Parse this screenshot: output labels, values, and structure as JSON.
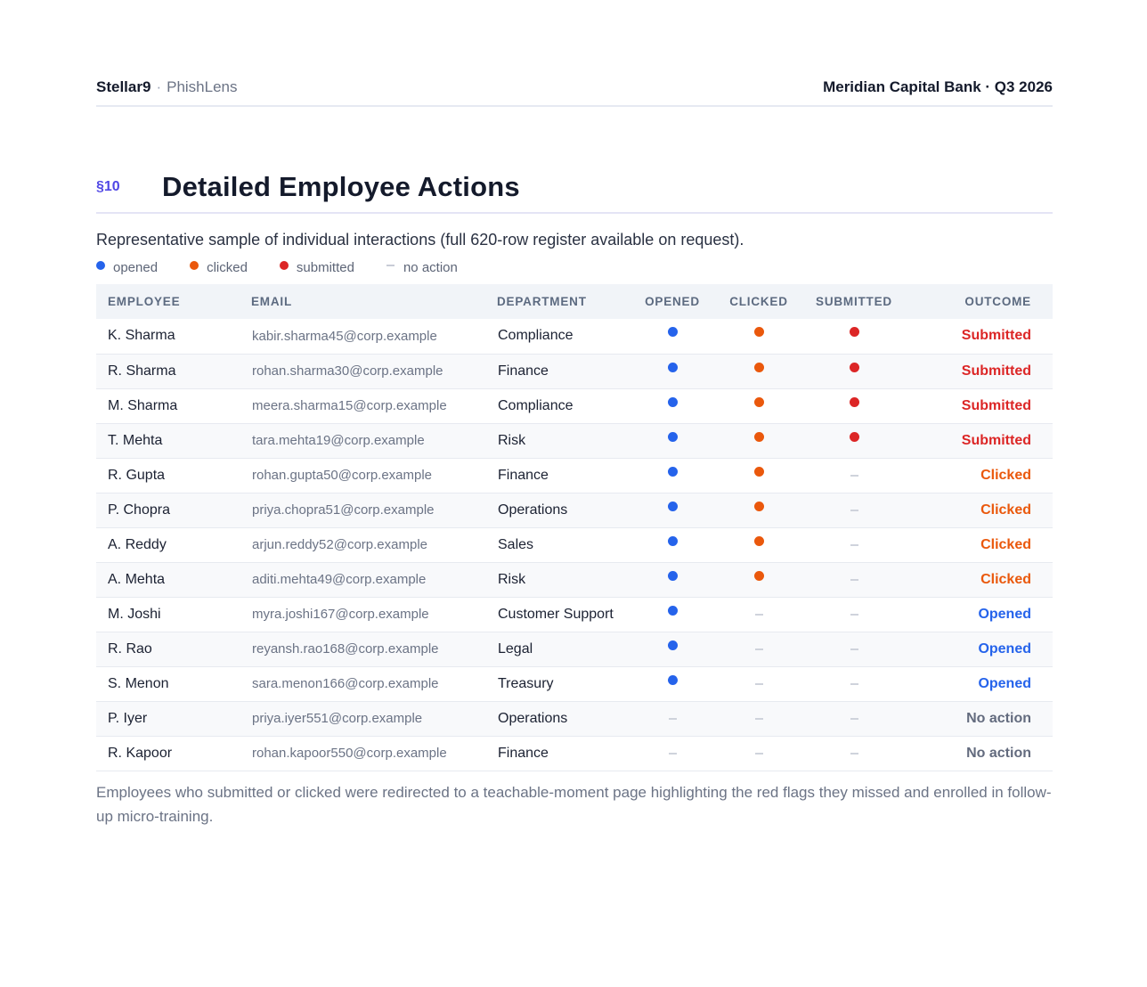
{
  "header": {
    "brand": "Stellar9",
    "separator": "·",
    "product": "PhishLens",
    "report": "Meridian Capital Bank · Q3 2026"
  },
  "section": {
    "number": "§10",
    "title": "Detailed Employee Actions",
    "lead": "Representative sample of individual interactions (full 620-row register available on request)."
  },
  "colors": {
    "opened": "#2563eb",
    "clicked": "#ea580c",
    "submitted": "#dc2626",
    "no_action": "#636b7e"
  },
  "legend": [
    {
      "key": "opened",
      "label": "opened",
      "marker": "dot"
    },
    {
      "key": "clicked",
      "label": "clicked",
      "marker": "dot"
    },
    {
      "key": "submitted",
      "label": "submitted",
      "marker": "dot"
    },
    {
      "key": "no_action",
      "label": "no action",
      "marker": "dash"
    }
  ],
  "table": {
    "columns": [
      "EMPLOYEE",
      "EMAIL",
      "DEPARTMENT",
      "OPENED",
      "CLICKED",
      "SUBMITTED",
      "OUTCOME"
    ],
    "rows": [
      {
        "employee": "K. Sharma",
        "email": "kabir.sharma45@corp.example",
        "department": "Compliance",
        "opened": true,
        "clicked": true,
        "submitted": true,
        "outcome": "Submitted",
        "outcome_key": "submitted"
      },
      {
        "employee": "R. Sharma",
        "email": "rohan.sharma30@corp.example",
        "department": "Finance",
        "opened": true,
        "clicked": true,
        "submitted": true,
        "outcome": "Submitted",
        "outcome_key": "submitted"
      },
      {
        "employee": "M. Sharma",
        "email": "meera.sharma15@corp.example",
        "department": "Compliance",
        "opened": true,
        "clicked": true,
        "submitted": true,
        "outcome": "Submitted",
        "outcome_key": "submitted"
      },
      {
        "employee": "T. Mehta",
        "email": "tara.mehta19@corp.example",
        "department": "Risk",
        "opened": true,
        "clicked": true,
        "submitted": true,
        "outcome": "Submitted",
        "outcome_key": "submitted"
      },
      {
        "employee": "R. Gupta",
        "email": "rohan.gupta50@corp.example",
        "department": "Finance",
        "opened": true,
        "clicked": true,
        "submitted": false,
        "outcome": "Clicked",
        "outcome_key": "clicked"
      },
      {
        "employee": "P. Chopra",
        "email": "priya.chopra51@corp.example",
        "department": "Operations",
        "opened": true,
        "clicked": true,
        "submitted": false,
        "outcome": "Clicked",
        "outcome_key": "clicked"
      },
      {
        "employee": "A. Reddy",
        "email": "arjun.reddy52@corp.example",
        "department": "Sales",
        "opened": true,
        "clicked": true,
        "submitted": false,
        "outcome": "Clicked",
        "outcome_key": "clicked"
      },
      {
        "employee": "A. Mehta",
        "email": "aditi.mehta49@corp.example",
        "department": "Risk",
        "opened": true,
        "clicked": true,
        "submitted": false,
        "outcome": "Clicked",
        "outcome_key": "clicked"
      },
      {
        "employee": "M. Joshi",
        "email": "myra.joshi167@corp.example",
        "department": "Customer Support",
        "opened": true,
        "clicked": false,
        "submitted": false,
        "outcome": "Opened",
        "outcome_key": "opened"
      },
      {
        "employee": "R. Rao",
        "email": "reyansh.rao168@corp.example",
        "department": "Legal",
        "opened": true,
        "clicked": false,
        "submitted": false,
        "outcome": "Opened",
        "outcome_key": "opened"
      },
      {
        "employee": "S. Menon",
        "email": "sara.menon166@corp.example",
        "department": "Treasury",
        "opened": true,
        "clicked": false,
        "submitted": false,
        "outcome": "Opened",
        "outcome_key": "opened"
      },
      {
        "employee": "P. Iyer",
        "email": "priya.iyer551@corp.example",
        "department": "Operations",
        "opened": false,
        "clicked": false,
        "submitted": false,
        "outcome": "No action",
        "outcome_key": "no_action"
      },
      {
        "employee": "R. Kapoor",
        "email": "rohan.kapoor550@corp.example",
        "department": "Finance",
        "opened": false,
        "clicked": false,
        "submitted": false,
        "outcome": "No action",
        "outcome_key": "no_action"
      }
    ]
  },
  "footnote": "Employees who submitted or clicked were redirected to a teachable-moment page highlighting the red flags they missed and enrolled in follow-up micro-training."
}
